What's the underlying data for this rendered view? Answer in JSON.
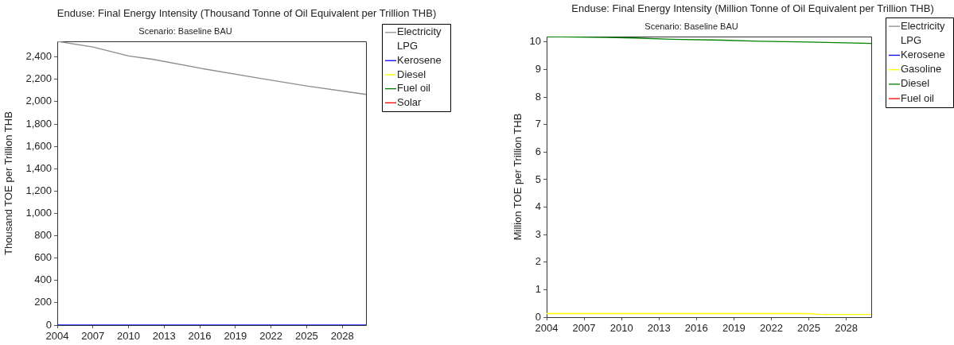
{
  "chart_data": [
    {
      "type": "line",
      "title": "Enduse: Final Energy Intensity (Thousand Tonne of Oil Equivalent per Trillion THB)",
      "subtitle": "Scenario: Baseline BAU",
      "ylabel": "Thousand TOE per Trillion THB",
      "xlim": [
        2004,
        2030
      ],
      "xticks": [
        2004,
        2007,
        2010,
        2013,
        2016,
        2019,
        2022,
        2025,
        2028
      ],
      "ylim": [
        0,
        2540
      ],
      "yticks": [
        0,
        200,
        400,
        600,
        800,
        {
          "value": 1000,
          "label": "1,000"
        },
        {
          "value": 1200,
          "label": "1,200"
        },
        {
          "value": 1400,
          "label": "1,400"
        },
        {
          "value": 1600,
          "label": "1,600"
        },
        {
          "value": 1800,
          "label": "1,800"
        },
        {
          "value": 2000,
          "label": "2,000"
        },
        {
          "value": 2200,
          "label": "2,200"
        },
        {
          "value": 2400,
          "label": "2,400"
        }
      ],
      "legend": "right",
      "series": [
        {
          "name": "Electricity",
          "color": "#8c8c8c",
          "x": [
            2004,
            2007,
            2010,
            2012,
            2016,
            2021,
            2025,
            2030
          ],
          "values": [
            2540,
            2490,
            2410,
            2380,
            2300,
            2210,
            2140,
            2065
          ]
        },
        {
          "name": "LPG"
        },
        {
          "name": "Kerosene",
          "color": "#0000ff",
          "x": [
            2004,
            2030
          ],
          "values": [
            0,
            0
          ]
        },
        {
          "name": "Diesel",
          "color": "#ffff00"
        },
        {
          "name": "Fuel oil",
          "color": "#008000"
        },
        {
          "name": "Solar",
          "color": "#ff0000"
        }
      ]
    },
    {
      "type": "line",
      "title": "Enduse: Final Energy Intensity (Million Tonne of Oil Equivalent per Trillion THB)",
      "subtitle": "Scenario: Baseline BAU",
      "ylabel": "Million TOE per Trillion THB",
      "xlim": [
        2004,
        2030
      ],
      "xticks": [
        2004,
        2007,
        2010,
        2013,
        2016,
        2019,
        2022,
        2025,
        2028
      ],
      "ylim": [
        0,
        10.2
      ],
      "yticks": [
        0,
        1,
        2,
        3,
        4,
        5,
        6,
        7,
        8,
        9,
        10
      ],
      "legend": "right",
      "series": [
        {
          "name": "Electricity",
          "color": "#8c8c8c"
        },
        {
          "name": "LPG"
        },
        {
          "name": "Kerosene",
          "color": "#0000ff"
        },
        {
          "name": "Gasoline",
          "color": "#ffff00",
          "x": [
            2004,
            2025,
            2026,
            2030
          ],
          "values": [
            0.13,
            0.13,
            0.1,
            0.1
          ]
        },
        {
          "name": "Diesel",
          "color": "#008000",
          "x": [
            2004,
            2011,
            2014,
            2018,
            2021,
            2025,
            2030
          ],
          "values": [
            10.2,
            10.15,
            10.1,
            10.07,
            10.03,
            10.0,
            9.95
          ]
        },
        {
          "name": "Fuel oil",
          "color": "#ff0000"
        }
      ]
    }
  ]
}
